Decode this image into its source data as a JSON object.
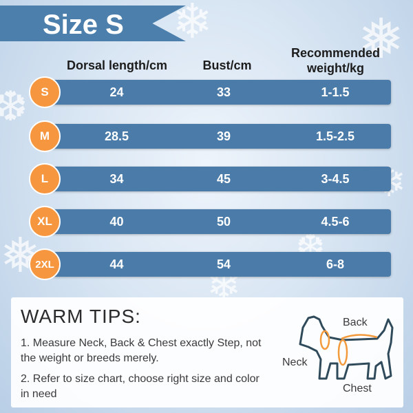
{
  "title": "Size S",
  "headers": {
    "dorsal": "Dorsal length/cm",
    "bust": "Bust/cm",
    "weight_line1": "Recommended",
    "weight_line2": "weight/kg"
  },
  "rows": [
    {
      "size": "S",
      "dorsal": "24",
      "bust": "33",
      "weight": "1-1.5"
    },
    {
      "size": "M",
      "dorsal": "28.5",
      "bust": "39",
      "weight": "1.5-2.5"
    },
    {
      "size": "L",
      "dorsal": "34",
      "bust": "45",
      "weight": "3-4.5"
    },
    {
      "size": "XL",
      "dorsal": "40",
      "bust": "50",
      "weight": "4.5-6"
    },
    {
      "size": "2XL",
      "dorsal": "44",
      "bust": "54",
      "weight": "6-8"
    }
  ],
  "tips": {
    "title": "WARM TIPS:",
    "item1": "1.  Measure Neck, Back & Chest exactly Step, not the weight or breeds merely.",
    "item2": "2.  Refer to size chart, choose right size and color in need"
  },
  "diagram": {
    "back": "Back",
    "neck": "Neck",
    "chest": "Chest"
  },
  "colors": {
    "row": "#4b7ba8",
    "badge": "#f6963f",
    "banner": "#4c7fac"
  }
}
